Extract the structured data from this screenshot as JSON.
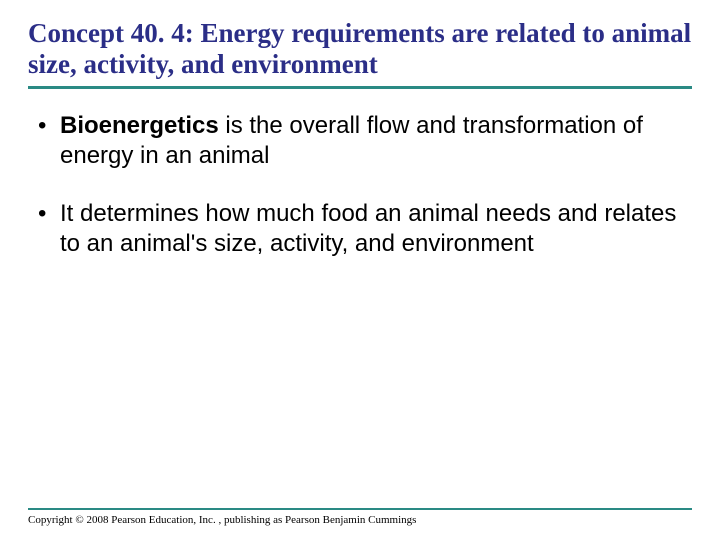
{
  "title": "Concept 40. 4: Energy requirements are related to animal size, activity, and environment",
  "title_color": "#2b2e87",
  "rule_color": "#2a8a84",
  "bullets": [
    {
      "bold_lead": "Bioenergetics",
      "rest": " is the overall flow and transformation of energy in an animal"
    },
    {
      "bold_lead": "",
      "rest": "It determines how much food an animal needs and relates to an animal's size, activity, and environment"
    }
  ],
  "copyright": "Copyright © 2008 Pearson Education, Inc. , publishing as Pearson Benjamin Cummings",
  "body_fontsize": 24,
  "title_fontsize": 27,
  "background_color": "#ffffff"
}
